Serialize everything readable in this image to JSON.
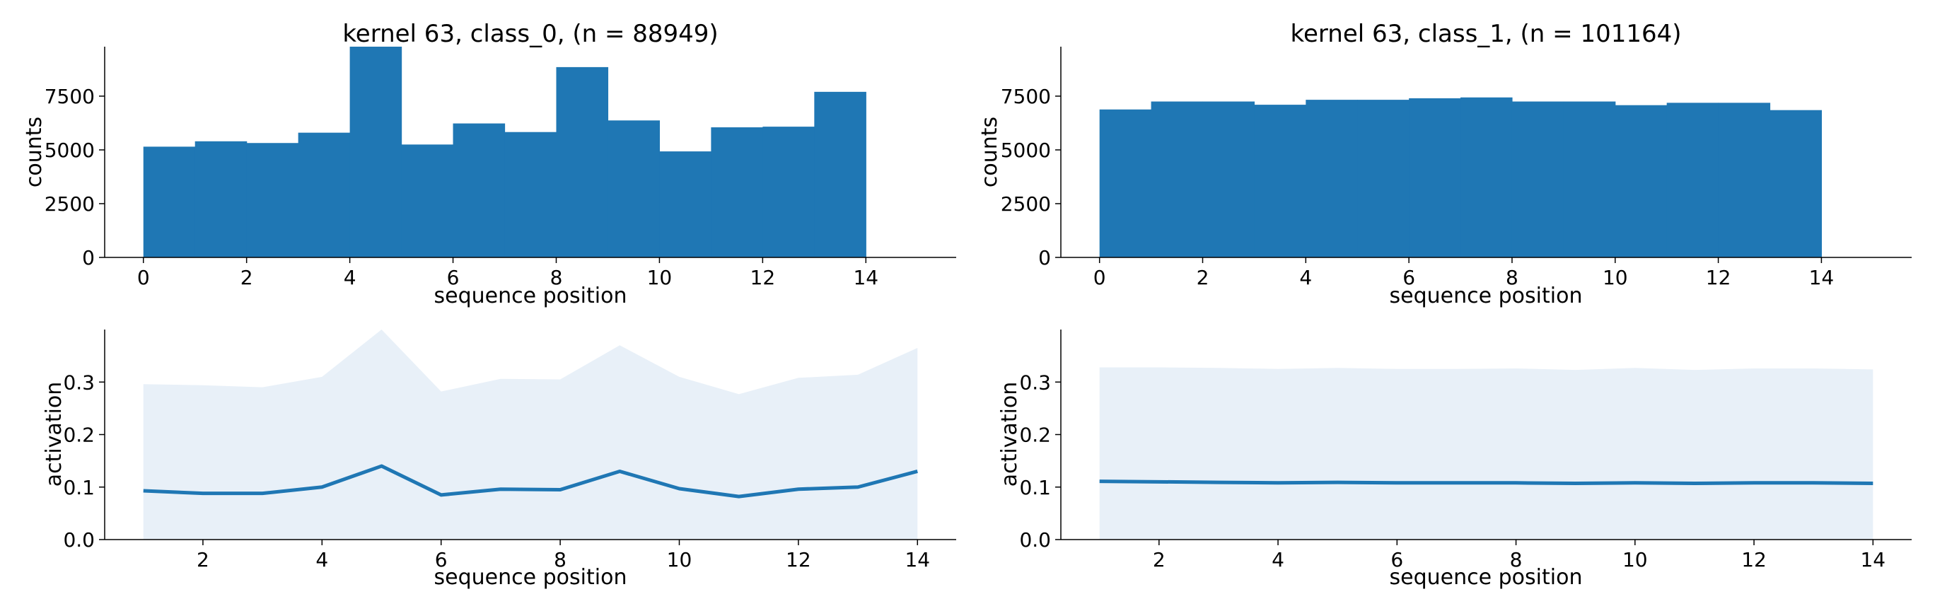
{
  "colors": {
    "bar": "#1f77b4",
    "line": "#1f77b4",
    "band": "#e8f0f8",
    "axis": "#000000"
  },
  "chart_data": [
    {
      "type": "bar",
      "title": "kernel 63, class_0, (n = 88949)",
      "xlabel": "sequence position",
      "ylabel": "counts",
      "xlim": [
        -0.75,
        15.75
      ],
      "ylim": [
        0,
        9800
      ],
      "xticks": [
        0,
        2,
        4,
        6,
        8,
        10,
        12,
        14
      ],
      "yticks": [
        0,
        2500,
        5000,
        7500
      ],
      "bin_edges": [
        0,
        1,
        2,
        3,
        4,
        5,
        6,
        7,
        8,
        9,
        10,
        11,
        12,
        13,
        14
      ],
      "values": [
        5150,
        5400,
        5320,
        5800,
        9800,
        5250,
        6230,
        5830,
        8850,
        6370,
        4930,
        6050,
        6080,
        7700
      ]
    },
    {
      "type": "bar",
      "title": "kernel 63, class_1, (n = 101164)",
      "xlabel": "sequence position",
      "ylabel": "counts",
      "xlim": [
        -0.75,
        15.75
      ],
      "ylim": [
        0,
        9800
      ],
      "xticks": [
        0,
        2,
        4,
        6,
        8,
        10,
        12,
        14
      ],
      "yticks": [
        0,
        2500,
        5000,
        7500
      ],
      "bin_edges": [
        0,
        1,
        2,
        3,
        4,
        5,
        6,
        7,
        8,
        9,
        10,
        11,
        12,
        13,
        14
      ],
      "values": [
        6880,
        7250,
        7250,
        7100,
        7330,
        7330,
        7400,
        7440,
        7250,
        7250,
        7080,
        7190,
        7190,
        6850
      ]
    },
    {
      "type": "line",
      "title": "",
      "xlabel": "sequence position",
      "ylabel": "activation",
      "xlim": [
        0.35,
        14.65
      ],
      "ylim": [
        0,
        0.4
      ],
      "xticks": [
        2,
        4,
        6,
        8,
        10,
        12,
        14
      ],
      "yticks": [
        "0.0",
        "0.1",
        "0.2",
        "0.3"
      ],
      "x": [
        1,
        2,
        3,
        4,
        5,
        6,
        7,
        8,
        9,
        10,
        11,
        12,
        13,
        14
      ],
      "mean": [
        0.093,
        0.088,
        0.088,
        0.1,
        0.14,
        0.085,
        0.096,
        0.095,
        0.13,
        0.097,
        0.082,
        0.096,
        0.1,
        0.13
      ],
      "band_upper": [
        0.296,
        0.294,
        0.29,
        0.31,
        0.4,
        0.282,
        0.306,
        0.305,
        0.37,
        0.31,
        0.277,
        0.308,
        0.314,
        0.365
      ]
    },
    {
      "type": "line",
      "title": "",
      "xlabel": "sequence position",
      "ylabel": "activation",
      "xlim": [
        0.35,
        14.65
      ],
      "ylim": [
        0,
        0.4
      ],
      "xticks": [
        2,
        4,
        6,
        8,
        10,
        12,
        14
      ],
      "yticks": [
        "0.0",
        "0.1",
        "0.2",
        "0.3"
      ],
      "x": [
        1,
        2,
        3,
        4,
        5,
        6,
        7,
        8,
        9,
        10,
        11,
        12,
        13,
        14
      ],
      "mean": [
        0.111,
        0.11,
        0.109,
        0.108,
        0.109,
        0.108,
        0.108,
        0.108,
        0.107,
        0.108,
        0.107,
        0.108,
        0.108,
        0.107
      ],
      "band_upper": [
        0.328,
        0.328,
        0.327,
        0.325,
        0.327,
        0.325,
        0.325,
        0.326,
        0.323,
        0.327,
        0.323,
        0.326,
        0.326,
        0.324
      ]
    }
  ]
}
